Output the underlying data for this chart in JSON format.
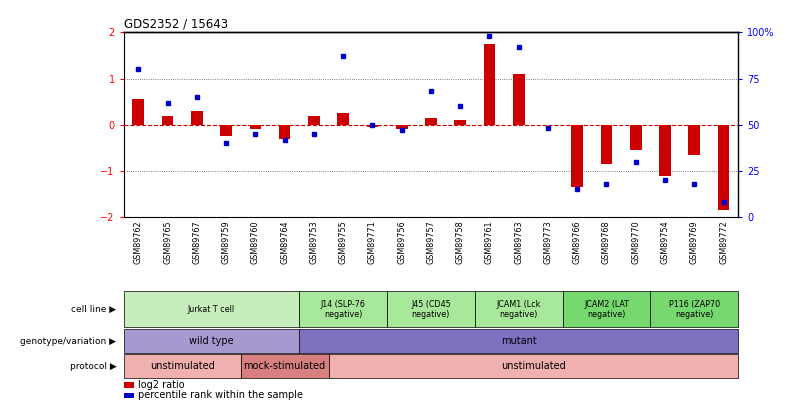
{
  "title": "GDS2352 / 15643",
  "samples": [
    "GSM89762",
    "GSM89765",
    "GSM89767",
    "GSM89759",
    "GSM89760",
    "GSM89764",
    "GSM89753",
    "GSM89755",
    "GSM89771",
    "GSM89756",
    "GSM89757",
    "GSM89758",
    "GSM89761",
    "GSM89763",
    "GSM89773",
    "GSM89766",
    "GSM89768",
    "GSM89770",
    "GSM89754",
    "GSM89769",
    "GSM89772"
  ],
  "log2_ratio": [
    0.55,
    0.2,
    0.3,
    -0.25,
    -0.1,
    -0.3,
    0.2,
    0.25,
    -0.05,
    -0.1,
    0.15,
    0.1,
    1.75,
    1.1,
    0.0,
    -1.35,
    -0.85,
    -0.55,
    -1.1,
    -0.65,
    -1.85
  ],
  "percentile": [
    80,
    62,
    65,
    40,
    45,
    42,
    45,
    87,
    50,
    47,
    68,
    60,
    98,
    92,
    48,
    15,
    18,
    30,
    20,
    18,
    8
  ],
  "cell_line_groups": [
    {
      "label": "Jurkat T cell",
      "start": 0,
      "end": 6,
      "color": "#c8edbc"
    },
    {
      "label": "J14 (SLP-76\nnegative)",
      "start": 6,
      "end": 9,
      "color": "#a8e89a"
    },
    {
      "label": "J45 (CD45\nnegative)",
      "start": 9,
      "end": 12,
      "color": "#a8e89a"
    },
    {
      "label": "JCAM1 (Lck\nnegative)",
      "start": 12,
      "end": 15,
      "color": "#a8e89a"
    },
    {
      "label": "JCAM2 (LAT\nnegative)",
      "start": 15,
      "end": 18,
      "color": "#78d870"
    },
    {
      "label": "P116 (ZAP70\nnegative)",
      "start": 18,
      "end": 21,
      "color": "#78d870"
    }
  ],
  "genotype_groups": [
    {
      "label": "wild type",
      "start": 0,
      "end": 6,
      "color": "#a898d0"
    },
    {
      "label": "mutant",
      "start": 6,
      "end": 21,
      "color": "#8070c0"
    }
  ],
  "protocol_groups": [
    {
      "label": "unstimulated",
      "start": 0,
      "end": 4,
      "color": "#f0b0b0"
    },
    {
      "label": "mock-stimulated",
      "start": 4,
      "end": 7,
      "color": "#d88080"
    },
    {
      "label": "unstimulated",
      "start": 7,
      "end": 21,
      "color": "#f0b0b0"
    }
  ],
  "bar_color": "#cc0000",
  "dot_color": "#0000cc",
  "zero_line_color": "#cc0000",
  "dotted_color": "#555555",
  "ylim": [
    -2,
    2
  ],
  "y2lim": [
    0,
    100
  ],
  "yticks": [
    -2,
    -1,
    0,
    1,
    2
  ],
  "y2ticks": [
    0,
    25,
    50,
    75,
    100
  ],
  "y2ticklabels": [
    "0",
    "25",
    "50",
    "75",
    "100%"
  ]
}
